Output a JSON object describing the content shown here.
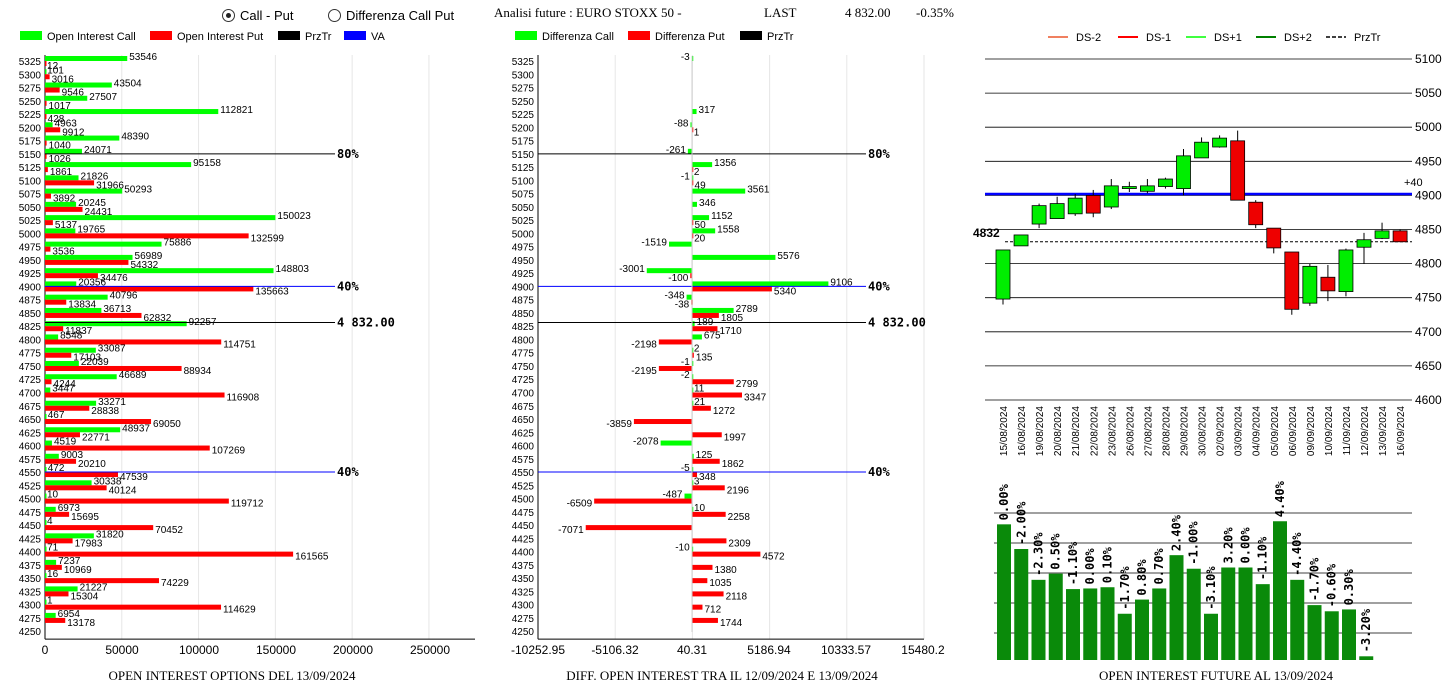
{
  "header": {
    "radio_call_put": "Call - Put",
    "radio_diff": "Differenza Call Put",
    "title": "Analisi future : EURO STOXX 50 -",
    "last_label": "LAST",
    "last_value": "4 832.00",
    "change": "-0.35%"
  },
  "chart_data": [
    {
      "type": "bar",
      "title": "OPEN INTEREST OPTIONS DEL 13/09/2024",
      "orientation": "horizontal",
      "legend": [
        "Open Interest Call",
        "Open Interest Put",
        "PrzTr",
        "VA"
      ],
      "colors": {
        "call": "#00ff00",
        "put": "#ff0000",
        "przTr": "#000000",
        "va": "#0000ff"
      },
      "categories": [
        "5325",
        "5300",
        "5275",
        "5250",
        "5225",
        "5200",
        "5175",
        "5150",
        "5125",
        "5100",
        "5075",
        "5050",
        "5025",
        "5000",
        "4975",
        "4950",
        "4925",
        "4900",
        "4875",
        "4850",
        "4825",
        "4800",
        "4775",
        "4750",
        "4725",
        "4700",
        "4675",
        "4650",
        "4625",
        "4600",
        "4575",
        "4550",
        "4525",
        "4500",
        "4475",
        "4450",
        "4425",
        "4400",
        "4375",
        "4350",
        "4325",
        "4300",
        "4275",
        "4250"
      ],
      "series": [
        {
          "name": "Open Interest Call",
          "values": [
            53546,
            101,
            43504,
            27507,
            112821,
            4963,
            48390,
            24071,
            95158,
            21826,
            50293,
            20245,
            150023,
            19765,
            75886,
            56989,
            148803,
            20356,
            40796,
            36713,
            92257,
            8548,
            33087,
            22039,
            46689,
            3447,
            33271,
            467,
            48937,
            4519,
            9003,
            472,
            30338,
            10,
            6973,
            4,
            31820,
            71,
            7237,
            16,
            21227,
            1,
            6954,
            0
          ]
        },
        {
          "name": "Open Interest Put",
          "values": [
            12,
            3016,
            9546,
            1017,
            428,
            9912,
            1040,
            1026,
            1861,
            31966,
            3892,
            24431,
            5137,
            132599,
            3536,
            54332,
            34476,
            135663,
            13834,
            62832,
            11837,
            114751,
            17103,
            88934,
            4244,
            116908,
            28838,
            69050,
            22771,
            107269,
            20210,
            47539,
            40124,
            119712,
            15695,
            70452,
            17983,
            161565,
            10969,
            74229,
            15304,
            114629,
            13178,
            0
          ]
        }
      ],
      "xticks": [
        "0",
        "50000",
        "100000",
        "150000",
        "200000",
        "250000"
      ],
      "xlim": [
        0,
        280000
      ],
      "ref_lines": [
        {
          "price": "5150",
          "label": "80%",
          "color": "#000000"
        },
        {
          "price": "4900",
          "label": "40%",
          "color": "#0000ff"
        },
        {
          "price": "4832",
          "label": "4 832.00",
          "color": "#000000"
        },
        {
          "price": "4550",
          "label": "40%",
          "color": "#0000ff"
        }
      ]
    },
    {
      "type": "bar",
      "title": "DIFF. OPEN INTEREST TRA IL 12/09/2024 E 13/09/2024",
      "orientation": "horizontal",
      "legend": [
        "Differenza Call",
        "Differenza Put",
        "PrzTr"
      ],
      "colors": {
        "call": "#00ff00",
        "put": "#ff0000",
        "przTr": "#000000"
      },
      "categories": [
        "5325",
        "5300",
        "5275",
        "5250",
        "5225",
        "5200",
        "5175",
        "5150",
        "5125",
        "5100",
        "5075",
        "5050",
        "5025",
        "5000",
        "4975",
        "4950",
        "4925",
        "4900",
        "4875",
        "4850",
        "4825",
        "4800",
        "4775",
        "4750",
        "4725",
        "4700",
        "4675",
        "4650",
        "4625",
        "4600",
        "4575",
        "4550",
        "4525",
        "4500",
        "4475",
        "4450",
        "4425",
        "4400",
        "4375",
        "4350",
        "4325",
        "4300",
        "4275",
        "4250"
      ],
      "series": [
        {
          "name": "Differenza Call",
          "values": [
            -3,
            0,
            0,
            0,
            317,
            -88,
            0,
            -261,
            1356,
            -1,
            3561,
            346,
            1152,
            1558,
            -1519,
            5576,
            -3001,
            9106,
            -348,
            2789,
            189,
            675,
            2,
            -1,
            -2,
            11,
            21,
            0,
            0,
            -2078,
            125,
            -5,
            3,
            -487,
            10,
            0,
            0,
            -10,
            0,
            0,
            0,
            0,
            0,
            0
          ]
        },
        {
          "name": "Differenza Put",
          "values": [
            0,
            0,
            0,
            0,
            0,
            1,
            0,
            0,
            2,
            49,
            0,
            0,
            50,
            20,
            0,
            0,
            -100,
            5340,
            -38,
            1805,
            1710,
            -2198,
            135,
            -2195,
            2799,
            3347,
            1272,
            -3859,
            1997,
            0,
            1862,
            348,
            2196,
            -6509,
            2258,
            -7071,
            2309,
            4572,
            1380,
            1035,
            2118,
            712,
            1744,
            0
          ]
        }
      ],
      "xticks": [
        "-10252.95",
        "-5106.32",
        "40.31",
        "5186.94",
        "10333.57",
        "15480.2"
      ],
      "xlim": [
        -10252.95,
        15480.2
      ],
      "ref_lines": [
        {
          "price": "5150",
          "label": "80%",
          "color": "#000000"
        },
        {
          "price": "4900",
          "label": "40%",
          "color": "#0000ff"
        },
        {
          "price": "4832",
          "label": "4 832.00",
          "color": "#000000"
        },
        {
          "price": "4550",
          "label": "40%",
          "color": "#0000ff"
        }
      ]
    },
    {
      "type": "candlestick",
      "title": "OPEN INTEREST FUTURE AL 13/09/2024",
      "legend": [
        "DS-2",
        "DS-1",
        "DS+1",
        "DS+2",
        "PrzTr"
      ],
      "legend_colors": [
        "#f08060",
        "#ff0000",
        "#40ff40",
        "#008000",
        "#000000"
      ],
      "ylim": [
        4600,
        5100
      ],
      "yticks": [
        "5100",
        "5050",
        "5000",
        "4950",
        "4900",
        "4850",
        "4800",
        "4750",
        "4700",
        "4650",
        "4600"
      ],
      "hline_value": 4902,
      "hline_label": "+40",
      "last_price": 4832,
      "last_label": "4832",
      "dates": [
        "15/08/2024",
        "16/08/2024",
        "19/08/2024",
        "20/08/2024",
        "21/08/2024",
        "22/08/2024",
        "23/08/2024",
        "26/08/2024",
        "27/08/2024",
        "28/08/2024",
        "29/08/2024",
        "30/08/2024",
        "02/09/2024",
        "03/09/2024",
        "04/09/2024",
        "05/09/2024",
        "06/09/2024",
        "09/09/2024",
        "10/09/2024",
        "11/09/2024",
        "12/09/2024",
        "13/09/2024",
        "16/09/2024"
      ],
      "ohlc": [
        [
          4748,
          4820,
          4740,
          4820
        ],
        [
          4826,
          4842,
          4826,
          4842
        ],
        [
          4858,
          4888,
          4852,
          4885
        ],
        [
          4866,
          4898,
          4866,
          4888
        ],
        [
          4873,
          4902,
          4870,
          4896
        ],
        [
          4900,
          4908,
          4868,
          4874
        ],
        [
          4883,
          4924,
          4880,
          4914
        ],
        [
          4910,
          4920,
          4905,
          4913
        ],
        [
          4906,
          4924,
          4903,
          4914
        ],
        [
          4913,
          4926,
          4910,
          4924
        ],
        [
          4910,
          4968,
          4900,
          4958
        ],
        [
          4955,
          4985,
          4955,
          4978
        ],
        [
          4971,
          4988,
          4970,
          4984
        ],
        [
          4980,
          4995,
          4893,
          4893
        ],
        [
          4890,
          4893,
          4852,
          4857
        ],
        [
          4852,
          4852,
          4815,
          4823
        ],
        [
          4817,
          4817,
          4725,
          4733
        ],
        [
          4742,
          4800,
          4738,
          4796
        ],
        [
          4780,
          4798,
          4745,
          4760
        ],
        [
          4759,
          4822,
          4752,
          4820
        ],
        [
          4824,
          4845,
          4800,
          4835
        ],
        [
          4837,
          4860,
          4836,
          4848
        ],
        [
          4848,
          4850,
          4832,
          4832
        ]
      ],
      "oi_pct": [
        "0.00%",
        "-2.00%",
        "-2.30%",
        "0.50%",
        "-1.10%",
        "0.00%",
        "0.10%",
        "-1.70%",
        "0.80%",
        "0.70%",
        "2.40%",
        "-1.00%",
        "-3.10%",
        "3.20%",
        "0.00%",
        "-1.10%",
        "4.40%",
        "-4.40%",
        "-1.70%",
        "-0.60%",
        "0.30%",
        "-3.20%"
      ],
      "oi_values": [
        2200,
        1800,
        1300,
        1400,
        1150,
        1160,
        1180,
        750,
        980,
        1160,
        1700,
        1480,
        750,
        1500,
        1500,
        1230,
        2250,
        1300,
        890,
        790,
        820,
        60
      ]
    }
  ]
}
